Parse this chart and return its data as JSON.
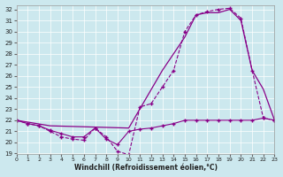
{
  "xlabel": "Windchill (Refroidissement éolien,°C)",
  "bg_color": "#cce8ee",
  "line_color": "#880088",
  "xlim": [
    0,
    23
  ],
  "ylim": [
    19,
    32.4
  ],
  "xticks": [
    0,
    1,
    2,
    3,
    4,
    5,
    6,
    7,
    8,
    9,
    10,
    11,
    12,
    13,
    14,
    15,
    16,
    17,
    18,
    19,
    20,
    21,
    22,
    23
  ],
  "yticks": [
    19,
    20,
    21,
    22,
    23,
    24,
    25,
    26,
    27,
    28,
    29,
    30,
    31,
    32
  ],
  "series1_x": [
    0,
    1,
    2,
    3,
    4,
    5,
    6,
    7,
    8,
    9,
    10,
    11,
    12,
    13,
    14,
    15,
    16,
    17,
    18,
    19,
    20,
    21,
    22,
    23
  ],
  "series1_y": [
    22,
    21.7,
    21.5,
    21.0,
    20.5,
    20.3,
    20.2,
    21.3,
    20.5,
    19.2,
    18.9,
    23.2,
    23.5,
    25.0,
    26.5,
    30.0,
    31.5,
    31.8,
    32.0,
    32.1,
    31.2,
    26.5,
    22.2,
    22.0
  ],
  "series2_x": [
    0,
    1,
    2,
    3,
    4,
    5,
    6,
    7,
    8,
    9,
    10,
    11,
    12,
    13,
    14,
    15,
    16,
    17,
    18,
    19,
    20,
    21,
    22,
    23
  ],
  "series2_y": [
    22,
    21.7,
    21.5,
    21.1,
    20.8,
    20.5,
    20.5,
    21.3,
    20.3,
    19.8,
    21.0,
    21.2,
    21.3,
    21.5,
    21.7,
    22.0,
    22.0,
    22.0,
    22.0,
    22.0,
    22.0,
    22.0,
    22.2,
    22.0
  ],
  "series3_x": [
    0,
    3,
    10,
    13,
    14,
    15,
    16,
    17,
    18,
    19,
    20,
    21,
    22,
    23
  ],
  "series3_y": [
    22,
    21.5,
    21.3,
    26.5,
    28.0,
    29.5,
    31.5,
    31.7,
    31.7,
    32.0,
    31.0,
    26.5,
    24.8,
    22.0
  ]
}
